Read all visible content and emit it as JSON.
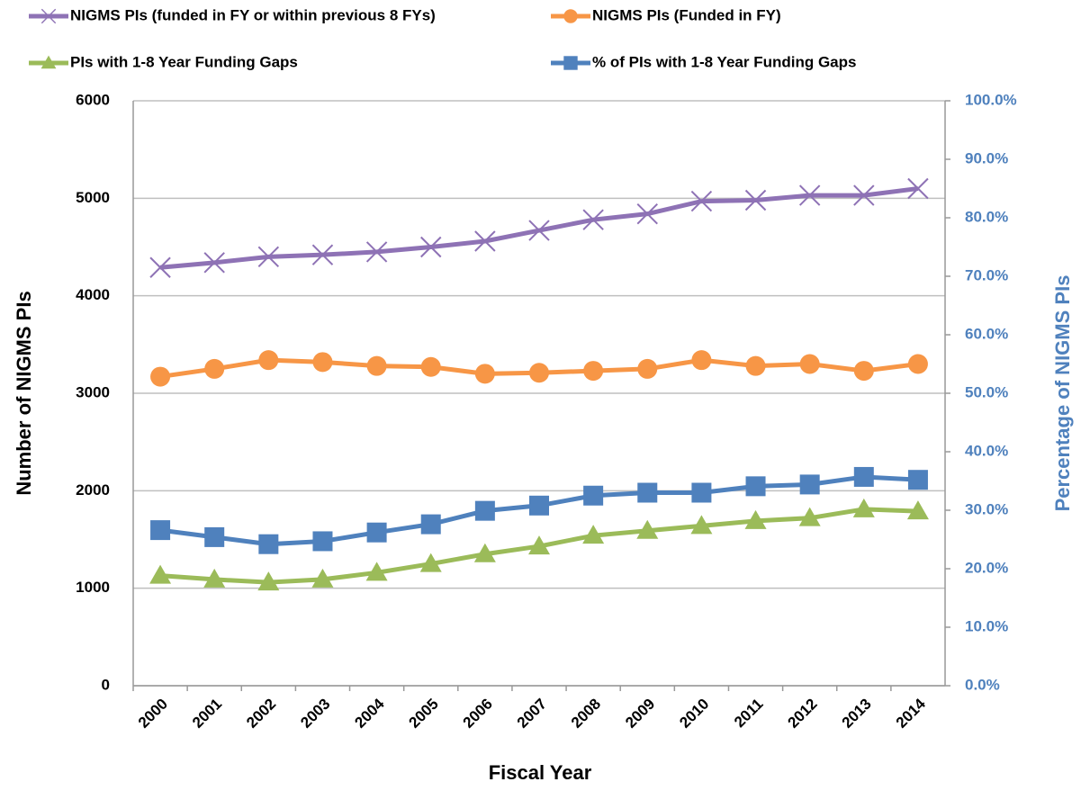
{
  "chart_data": {
    "type": "line",
    "x_label": "Fiscal Year",
    "y_label": "Number of NIGMS PIs",
    "y2_label": "Percentage of NIGMS PIs",
    "categories": [
      "2000",
      "2001",
      "2002",
      "2003",
      "2004",
      "2005",
      "2006",
      "2007",
      "2008",
      "2009",
      "2010",
      "2011",
      "2012",
      "2013",
      "2014"
    ],
    "series": [
      {
        "name": "NIGMS PIs (funded in FY or within previous 8 FYs)",
        "color": "#8e72b5",
        "marker": "x",
        "values": [
          4290,
          4340,
          4400,
          4420,
          4450,
          4500,
          4560,
          4670,
          4780,
          4840,
          4970,
          4980,
          5030,
          5030,
          5100
        ]
      },
      {
        "name": "NIGMS PIs (Funded in FY)",
        "color": "#f79646",
        "marker": "circle",
        "values": [
          3170,
          3250,
          3340,
          3320,
          3280,
          3270,
          3200,
          3210,
          3230,
          3250,
          3340,
          3280,
          3300,
          3230,
          3300
        ]
      },
      {
        "name": "PIs with 1-8 Year Funding Gaps",
        "color": "#9bbb59",
        "marker": "triangle",
        "values": [
          1130,
          1090,
          1060,
          1090,
          1160,
          1250,
          1350,
          1430,
          1540,
          1590,
          1640,
          1690,
          1720,
          1810,
          1790
        ]
      },
      {
        "name": "% of PIs with 1-8 Year Funding Gaps",
        "color": "#4f81bd",
        "marker": "square",
        "axis": "y2",
        "values": [
          26.6,
          25.4,
          24.2,
          24.7,
          26.2,
          27.6,
          29.9,
          30.8,
          32.5,
          33.0,
          33.0,
          34.1,
          34.4,
          35.7,
          35.2
        ]
      }
    ],
    "ylim": [
      0,
      6000
    ],
    "yticks": [
      0,
      1000,
      2000,
      3000,
      4000,
      5000,
      6000
    ],
    "y2lim": [
      0,
      100
    ],
    "y2ticks": [
      {
        "value": 0,
        "label": "0.0%"
      },
      {
        "value": 10,
        "label": "10.0%"
      },
      {
        "value": 20,
        "label": "20.0%"
      },
      {
        "value": 30,
        "label": "30.0%"
      },
      {
        "value": 40,
        "label": "40.0%"
      },
      {
        "value": 50,
        "label": "50.0%"
      },
      {
        "value": 60,
        "label": "60.0%"
      },
      {
        "value": 70,
        "label": "70.0%"
      },
      {
        "value": 80,
        "label": "80.0%"
      },
      {
        "value": 90,
        "label": "90.0%"
      },
      {
        "value": 100,
        "label": "100.0%"
      }
    ],
    "y2_color": "#4f81bd",
    "grid": true
  }
}
